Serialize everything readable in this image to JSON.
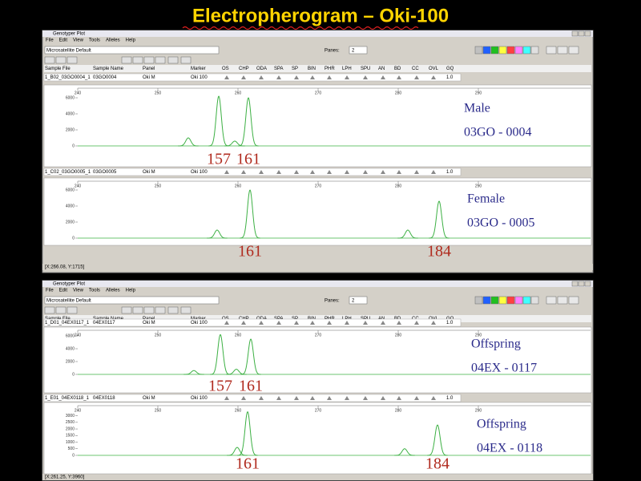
{
  "title": "Electropherogram – Oki-100",
  "windows": [
    {
      "window_title": "Genotyper Plot",
      "menu": [
        "File",
        "Edit",
        "View",
        "Tools",
        "Alleles",
        "Help"
      ],
      "preset": "Microsatellite Default",
      "panes_label": "Panes:",
      "panes_value": 2,
      "columns": [
        "Sample File",
        "Sample Name",
        "Panel",
        "Marker",
        "OS",
        "CHP",
        "ODA",
        "SPA",
        "SP",
        "BIN",
        "PHR",
        "LPH",
        "SPU",
        "AN",
        "BD",
        "CC",
        "OVL",
        "GQ"
      ],
      "panes": [
        {
          "row": [
            "1_B02_03GO0004_1",
            "03GO0004",
            "Oki M",
            "Oki 100"
          ],
          "row_value": "1.0",
          "annotation": [
            "Male",
            "03GO - 0004"
          ],
          "xlim": [
            240,
            304
          ],
          "xticks": [
            240,
            250,
            260,
            270,
            280,
            290
          ],
          "ylim": [
            0,
            6600
          ],
          "yticks": [
            0,
            2000,
            4000,
            6000
          ],
          "peaks": [
            {
              "x": 253.8,
              "height": 1000
            },
            {
              "x": 257.6,
              "height": 6200,
              "allele": "157"
            },
            {
              "x": 259.6,
              "height": 600
            },
            {
              "x": 261.3,
              "height": 6000,
              "allele": "161"
            }
          ]
        },
        {
          "row": [
            "1_C02_03GO0005_1",
            "03GO0005",
            "Oki M",
            "Oki 100"
          ],
          "row_value": "1.0",
          "annotation": [
            "Female",
            "03GO - 0005"
          ],
          "xlim": [
            240,
            304
          ],
          "xticks": [
            240,
            250,
            260,
            270,
            280,
            290
          ],
          "ylim": [
            0,
            6400
          ],
          "yticks": [
            0,
            2000,
            4000,
            6000
          ],
          "peaks": [
            {
              "x": 257.4,
              "height": 1000
            },
            {
              "x": 261.5,
              "height": 6000,
              "allele": "161"
            },
            {
              "x": 281.2,
              "height": 1000
            },
            {
              "x": 285.1,
              "height": 4600,
              "allele": "184"
            }
          ]
        }
      ],
      "status": "[X:266.08, Y:1715]"
    },
    {
      "window_title": "Genotyper Plot",
      "menu": [
        "File",
        "Edit",
        "View",
        "Tools",
        "Alleles",
        "Help"
      ],
      "preset": "Microsatellite Default",
      "panes_label": "Panes:",
      "panes_value": 2,
      "columns": [
        "Sample File",
        "Sample Name",
        "Panel",
        "Marker",
        "OS",
        "CHP",
        "ODA",
        "SPA",
        "SP",
        "BIN",
        "PHR",
        "LPH",
        "SPU",
        "AN",
        "BD",
        "CC",
        "OVL",
        "GQ"
      ],
      "panes": [
        {
          "row": [
            "1_D01_04EX0117_1",
            "04EX0117",
            "Oki M",
            "Oki 100"
          ],
          "row_value": "1.0",
          "annotation": [
            "Offspring",
            "04EX - 0117"
          ],
          "xlim": [
            240,
            304
          ],
          "xticks": [
            240,
            250,
            260,
            270,
            280,
            290
          ],
          "ylim": [
            0,
            7000
          ],
          "yticks": [
            0,
            2000,
            4000,
            6000
          ],
          "peaks": [
            {
              "x": 254.5,
              "height": 600
            },
            {
              "x": 257.8,
              "height": 6200,
              "allele": "157"
            },
            {
              "x": 259.8,
              "height": 800
            },
            {
              "x": 261.6,
              "height": 5500,
              "allele": "161"
            }
          ]
        },
        {
          "row": [
            "1_E01_04EX0118_1",
            "04EX0118",
            "Oki M",
            "Oki 100"
          ],
          "row_value": "1.0",
          "annotation": [
            "Offspring",
            "04EX - 0118"
          ],
          "xlim": [
            240,
            304
          ],
          "xticks": [
            240,
            250,
            260,
            270,
            280,
            290
          ],
          "ylim": [
            0,
            3400
          ],
          "yticks": [
            0,
            500,
            1000,
            1500,
            2000,
            2500,
            3000
          ],
          "peaks": [
            {
              "x": 259.9,
              "height": 600
            },
            {
              "x": 261.2,
              "height": 3300,
              "allele": "161"
            },
            {
              "x": 280.8,
              "height": 500
            },
            {
              "x": 284.9,
              "height": 2300,
              "allele": "184"
            }
          ]
        }
      ],
      "status": "[X:261.25, Y:3960]"
    }
  ]
}
